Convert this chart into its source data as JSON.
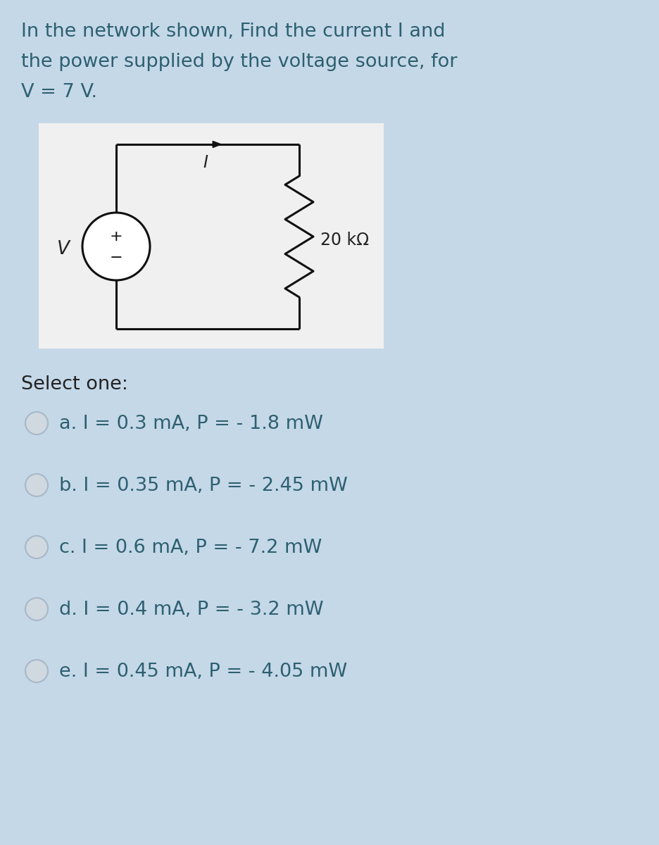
{
  "background_color": "#c5d8e8",
  "title_lines": [
    "In the network shown, Find the current I and",
    "the power supplied by the voltage source, for",
    "V = 7 V."
  ],
  "title_fontsize": 19.5,
  "title_color": "#2d6070",
  "circuit_bg": "#f0f0f0",
  "select_one_text": "Select one:",
  "options": [
    "a. I = 0.3 mA, P = - 1.8 mW",
    "b. I = 0.35 mA, P = - 2.45 mW",
    "c. I = 0.6 mA, P = - 7.2 mW",
    "d. I = 0.4 mA, P = - 3.2 mW",
    "e. I = 0.45 mA, P = - 4.05 mW"
  ],
  "option_fontsize": 19.5,
  "option_color": "#2d6070",
  "radio_fill": "#d0d8e0",
  "radio_edge": "#a8b8c8",
  "circuit_line_color": "#111111",
  "label_color": "#222222",
  "label_fontsize": 17,
  "select_fontsize": 19.5,
  "select_color": "#222222"
}
